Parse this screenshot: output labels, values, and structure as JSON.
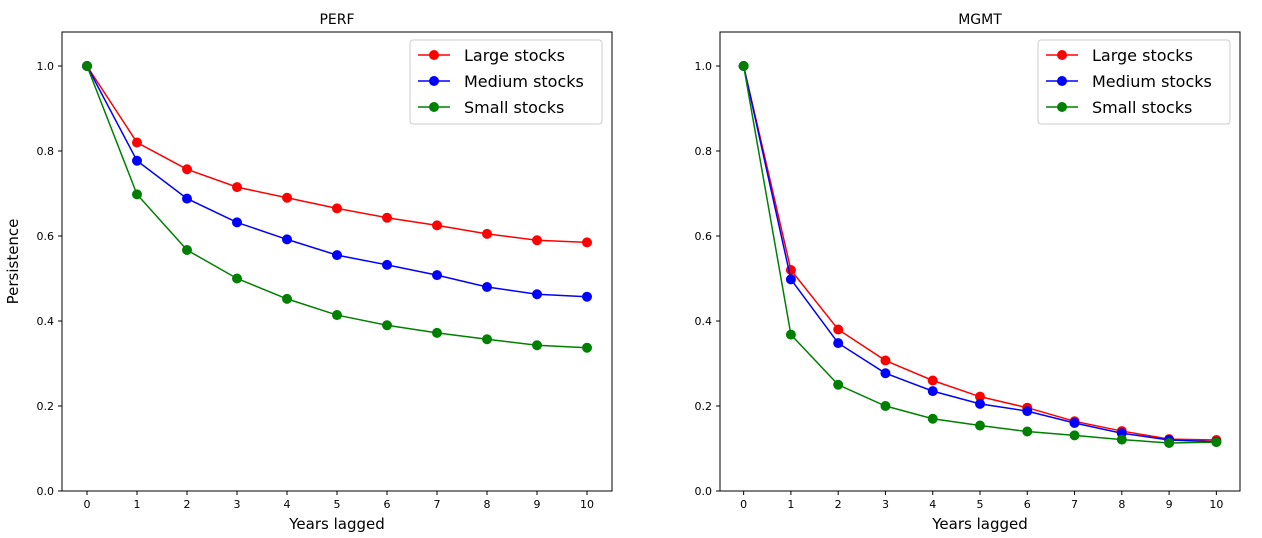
{
  "chart_data": [
    {
      "type": "line",
      "title": "PERF",
      "xlabel": "Years lagged",
      "ylabel": "Persistence",
      "x": [
        0,
        1,
        2,
        3,
        4,
        5,
        6,
        7,
        8,
        9,
        10
      ],
      "xticks": [
        "0",
        "1",
        "2",
        "3",
        "4",
        "5",
        "6",
        "7",
        "8",
        "9",
        "10"
      ],
      "yticks": [
        "0.0",
        "0.2",
        "0.4",
        "0.6",
        "0.8",
        "1.0"
      ],
      "ylim": [
        0,
        1.08
      ],
      "xlim": [
        -0.5,
        10.5
      ],
      "grid": false,
      "legend_position": "upper right",
      "series": [
        {
          "name": "Large stocks",
          "color": "#ff0000",
          "values": [
            1.0,
            0.82,
            0.757,
            0.715,
            0.69,
            0.665,
            0.643,
            0.625,
            0.605,
            0.59,
            0.585
          ]
        },
        {
          "name": "Medium stocks",
          "color": "#0000ff",
          "values": [
            1.0,
            0.777,
            0.688,
            0.632,
            0.592,
            0.555,
            0.532,
            0.508,
            0.48,
            0.463,
            0.457
          ]
        },
        {
          "name": "Small stocks",
          "color": "#008000",
          "values": [
            1.0,
            0.698,
            0.567,
            0.5,
            0.452,
            0.414,
            0.39,
            0.372,
            0.357,
            0.343,
            0.337
          ]
        }
      ]
    },
    {
      "type": "line",
      "title": "MGMT",
      "xlabel": "Years lagged",
      "ylabel": "",
      "x": [
        0,
        1,
        2,
        3,
        4,
        5,
        6,
        7,
        8,
        9,
        10
      ],
      "xticks": [
        "0",
        "1",
        "2",
        "3",
        "4",
        "5",
        "6",
        "7",
        "8",
        "9",
        "10"
      ],
      "yticks": [
        "0.0",
        "0.2",
        "0.4",
        "0.6",
        "0.8",
        "1.0"
      ],
      "ylim": [
        0,
        1.08
      ],
      "xlim": [
        -0.5,
        10.5
      ],
      "grid": false,
      "legend_position": "upper right",
      "series": [
        {
          "name": "Large stocks",
          "color": "#ff0000",
          "values": [
            1.0,
            0.52,
            0.38,
            0.307,
            0.26,
            0.222,
            0.196,
            0.164,
            0.141,
            0.122,
            0.12
          ]
        },
        {
          "name": "Medium stocks",
          "color": "#0000ff",
          "values": [
            1.0,
            0.498,
            0.348,
            0.277,
            0.235,
            0.205,
            0.188,
            0.16,
            0.136,
            0.12,
            0.116
          ]
        },
        {
          "name": "Small stocks",
          "color": "#008000",
          "values": [
            1.0,
            0.368,
            0.25,
            0.2,
            0.17,
            0.154,
            0.14,
            0.131,
            0.121,
            0.113,
            0.115
          ]
        }
      ]
    }
  ]
}
